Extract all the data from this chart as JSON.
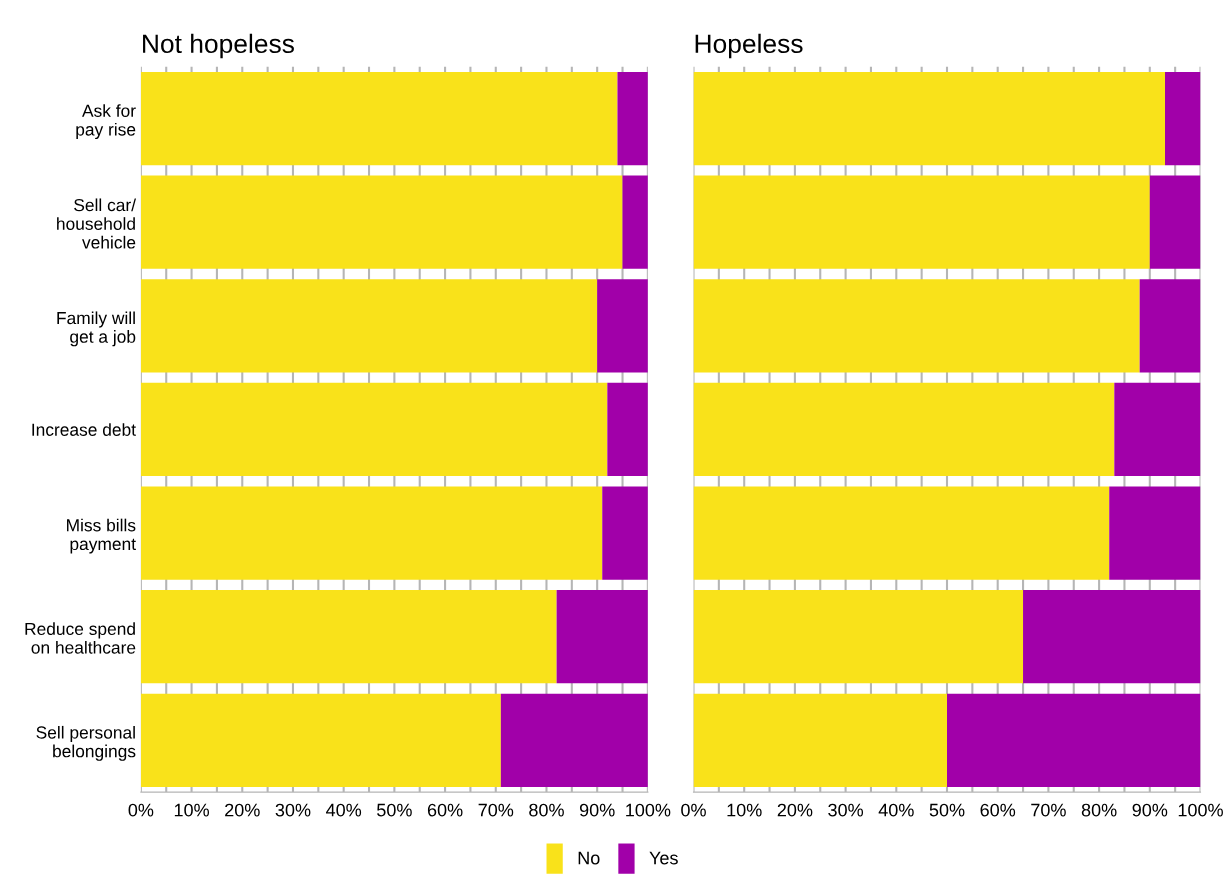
{
  "chart_data": [
    {
      "type": "bar",
      "title": "Not hopeless",
      "orientation": "horizontal",
      "stacked": true,
      "categories": [
        "Ask for\npay rise",
        "Sell car/\nhousehold\nvehicle",
        "Family will\nget a job",
        "Increase debt",
        "Miss bills\npayment",
        "Reduce spend\non healthcare",
        "Sell personal\nbelongings"
      ],
      "series": [
        {
          "name": "No",
          "color": "#f9e21a",
          "values": [
            94,
            95,
            90,
            92,
            91,
            82,
            71
          ]
        },
        {
          "name": "Yes",
          "color": "#a100a9",
          "values": [
            6,
            5,
            10,
            8,
            9,
            18,
            29
          ]
        }
      ],
      "xlim": [
        0,
        100
      ],
      "xticks": [
        {
          "value": 0,
          "label": "0%"
        },
        {
          "value": 5,
          "label": null
        },
        {
          "value": 10,
          "label": "10%"
        },
        {
          "value": 15,
          "label": null
        },
        {
          "value": 20,
          "label": "20%"
        },
        {
          "value": 25,
          "label": null
        },
        {
          "value": 30,
          "label": "30%"
        },
        {
          "value": 35,
          "label": null
        },
        {
          "value": 40,
          "label": "40%"
        },
        {
          "value": 45,
          "label": null
        },
        {
          "value": 50,
          "label": "50%"
        },
        {
          "value": 55,
          "label": null
        },
        {
          "value": 60,
          "label": "60%"
        },
        {
          "value": 65,
          "label": null
        },
        {
          "value": 70,
          "label": "70%"
        },
        {
          "value": 75,
          "label": null
        },
        {
          "value": 80,
          "label": "80%"
        },
        {
          "value": 85,
          "label": null
        },
        {
          "value": 90,
          "label": "90%"
        },
        {
          "value": 95,
          "label": null
        },
        {
          "value": 100,
          "label": "100%"
        }
      ],
      "grid": "x",
      "legend": "bottom"
    },
    {
      "type": "bar",
      "title": "Hopeless",
      "orientation": "horizontal",
      "stacked": true,
      "categories": [
        null,
        null,
        null,
        null,
        null,
        null,
        null
      ],
      "series": [
        {
          "color": "#f9e21a",
          "values": [
            93,
            90,
            88,
            83,
            82,
            65,
            50
          ]
        },
        {
          "color": "#a100a9",
          "values": [
            7,
            10,
            12,
            17,
            18,
            35,
            50
          ]
        }
      ],
      "xlim": [
        0,
        100
      ],
      "xticks": [
        {
          "value": 0,
          "label": "0%"
        },
        {
          "value": 5,
          "label": null
        },
        {
          "value": 10,
          "label": "10%"
        },
        {
          "value": 15,
          "label": null
        },
        {
          "value": 20,
          "label": "20%"
        },
        {
          "value": 25,
          "label": null
        },
        {
          "value": 30,
          "label": "30%"
        },
        {
          "value": 35,
          "label": null
        },
        {
          "value": 40,
          "label": "40%"
        },
        {
          "value": 45,
          "label": null
        },
        {
          "value": 50,
          "label": "50%"
        },
        {
          "value": 55,
          "label": null
        },
        {
          "value": 60,
          "label": "60%"
        },
        {
          "value": 65,
          "label": null
        },
        {
          "value": 70,
          "label": "70%"
        },
        {
          "value": 75,
          "label": null
        },
        {
          "value": 80,
          "label": "80%"
        },
        {
          "value": 85,
          "label": null
        },
        {
          "value": 90,
          "label": "90%"
        },
        {
          "value": 95,
          "label": null
        },
        {
          "value": 100,
          "label": "100%"
        }
      ],
      "grid": "x"
    }
  ]
}
